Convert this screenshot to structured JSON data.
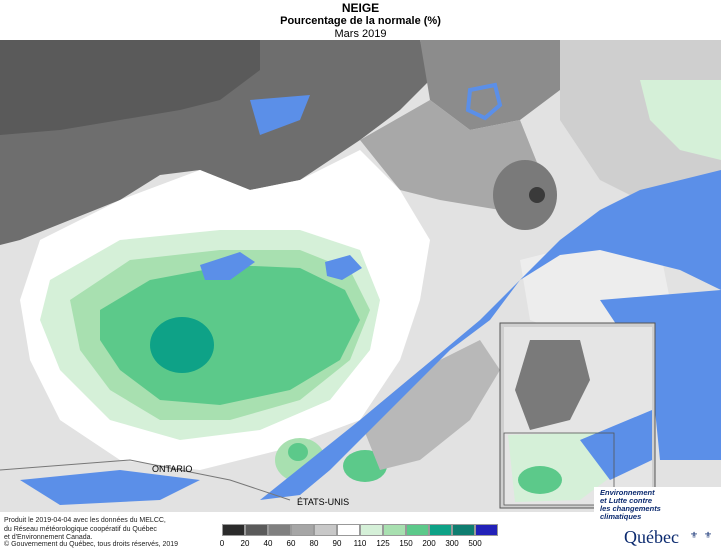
{
  "title": {
    "main": "NEIGE",
    "subtitle": "Pourcentage de la normale (%)",
    "period": "Mars 2019"
  },
  "map_labels": {
    "ontario": "ONTARIO",
    "usa": "ÉTATS-UNIS"
  },
  "legend": {
    "labels": [
      "0",
      "20",
      "40",
      "60",
      "80",
      "90",
      "110",
      "125",
      "150",
      "200",
      "300",
      "500"
    ],
    "colors": [
      "#2b2b2b",
      "#5a5a5a",
      "#808080",
      "#a6a6a6",
      "#c8c8c8",
      "#ffffff",
      "#d5f0d8",
      "#a8e0b0",
      "#5cc98a",
      "#0ea287",
      "#0f7d70",
      "#2221b8"
    ]
  },
  "credits": {
    "line1": "Produit le 2019-04-04 avec les données du MELCC,",
    "line2": "du Réseau météorologique coopératif du Québec",
    "line3": "et d'Environnement Canada.",
    "copyright": "© Gouvernement du Québec, tous droits réservés, 2019"
  },
  "brand": {
    "line1": "Environnement",
    "line2": "et Lutte contre",
    "line3": "les changements",
    "line4": "climatiques",
    "name": "Québec"
  },
  "colors": {
    "water": "#5b8fe8",
    "outside": "#c0c0c0",
    "border": "#7a7a7a"
  }
}
